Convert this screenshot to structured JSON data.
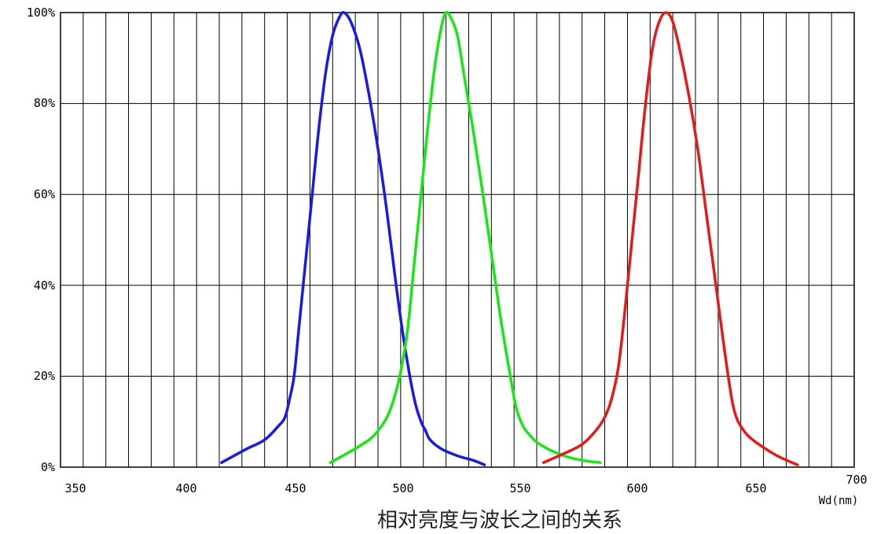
{
  "chart_data": {
    "type": "line",
    "title": "相对亮度与波长之间的关系",
    "xlabel": "Wd(nm)",
    "ylabel": "",
    "xlim": [
      350,
      700
    ],
    "ylim": [
      0,
      100
    ],
    "x_ticks": [
      "350",
      "400",
      "450",
      "500",
      "550",
      "600",
      "650",
      "700"
    ],
    "y_ticks": [
      "0%",
      "20%",
      "40%",
      "60%",
      "80%",
      "100%"
    ],
    "grid": true,
    "legend": "none",
    "series": [
      {
        "color": "#1a1ae6",
        "x": [
          421,
          432,
          440,
          446,
          449,
          451,
          453,
          455,
          458,
          461,
          464,
          467,
          470,
          473,
          475,
          478,
          482,
          486,
          490,
          494,
          498,
          502,
          506,
          509,
          511,
          513,
          518,
          525,
          532,
          537
        ],
        "y": [
          1,
          4,
          6,
          9,
          11,
          15,
          20,
          30,
          45,
          60,
          75,
          87,
          95,
          99,
          100,
          98,
          92,
          82,
          70,
          56,
          40,
          26,
          15,
          10,
          8,
          6,
          4,
          2.5,
          1.5,
          0.5
        ]
      },
      {
        "color": "#19e619",
        "x": [
          469,
          478,
          486,
          490,
          494,
          497,
          500,
          503,
          506,
          509,
          512,
          515,
          518,
          520,
          522,
          525,
          528,
          532,
          536,
          540,
          544,
          548,
          551,
          554,
          557,
          560,
          565,
          572,
          580,
          588
        ],
        "y": [
          1,
          3.5,
          6,
          8,
          11,
          15,
          21,
          30,
          45,
          60,
          75,
          88,
          97,
          100,
          99,
          95,
          86,
          74,
          61,
          47,
          33,
          21,
          13,
          9,
          7,
          5.5,
          4,
          2.5,
          1.5,
          1
        ]
      },
      {
        "color": "#e61919",
        "x": [
          563,
          572,
          580,
          586,
          590,
          593,
          596,
          599,
          602,
          605,
          608,
          611,
          614,
          617,
          620,
          623,
          627,
          631,
          635,
          639,
          643,
          646,
          648,
          650,
          653,
          658,
          666,
          675
        ],
        "y": [
          1,
          3,
          5,
          8,
          11,
          15,
          22,
          35,
          50,
          65,
          80,
          92,
          98,
          100,
          98,
          92,
          82,
          70,
          55,
          40,
          25,
          15,
          11,
          9,
          7,
          5,
          2.5,
          0.5
        ]
      }
    ]
  }
}
